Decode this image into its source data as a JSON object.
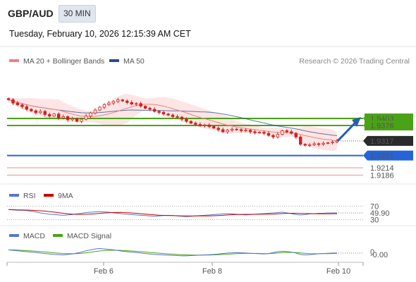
{
  "header": {
    "symbol": "GBP/AUD",
    "timeframe": "30 MIN",
    "datetime": "Tuesday, February 10, 2026 12:15:39 AM CET"
  },
  "source": "Research © 2026 Trading Central",
  "colors": {
    "candle": "#d02020",
    "ma20": "#f08080",
    "bands": "#fde0e0",
    "ma50": "#2a4d8f",
    "resistance": "#4aa316",
    "support": "#2464d8",
    "target": "#f07070",
    "rsi": "#5577cc",
    "ma9": "#cc0000",
    "macd": "#5577cc",
    "macd_signal": "#4aa316",
    "last_price": "#2a2a2a"
  },
  "chart_data": [
    {
      "type": "candlestick",
      "legend": [
        {
          "label": "MA 20 + Bollinger Bands",
          "color": "#f08080"
        },
        {
          "label": "MA 50",
          "color": "#2a4d8f"
        }
      ],
      "x_ticks": [
        "Feb 6",
        "Feb 8",
        "Feb 10"
      ],
      "ylim": [
        1.916,
        1.96
      ],
      "close": [
        1.9475,
        1.9462,
        1.9455,
        1.9448,
        1.9438,
        1.9432,
        1.9425,
        1.943,
        1.9418,
        1.9412,
        1.942,
        1.9405,
        1.941,
        1.9398,
        1.9402,
        1.9392,
        1.94,
        1.9412,
        1.9424,
        1.9435,
        1.9446,
        1.9456,
        1.9462,
        1.9468,
        1.9474,
        1.947,
        1.9464,
        1.9458,
        1.946,
        1.945,
        1.9442,
        1.9438,
        1.943,
        1.9426,
        1.942,
        1.9416,
        1.941,
        1.9408,
        1.94,
        1.9392,
        1.9385,
        1.938,
        1.9376,
        1.9378,
        1.9372,
        1.9366,
        1.936,
        1.9352,
        1.9358,
        1.9362,
        1.936,
        1.9356,
        1.9358,
        1.9352,
        1.9348,
        1.935,
        1.9346,
        1.9338,
        1.9332,
        1.9342,
        1.9356,
        1.9352,
        1.9346,
        1.9332,
        1.9304,
        1.93,
        1.9302,
        1.9306,
        1.9304,
        1.9308,
        1.931,
        1.9313,
        1.9317
      ],
      "price_labels": [
        {
          "value": 1.9403,
          "label": "1.9403",
          "kind": "resistance"
        },
        {
          "value": 1.9376,
          "label": "1.9376",
          "kind": "resistance"
        },
        {
          "value": 1.9317,
          "label": "1.9317",
          "kind": "last"
        },
        {
          "value": 1.9261,
          "label": "1.9261",
          "kind": "support"
        },
        {
          "value": 1.9214,
          "label": "1.9214",
          "kind": "target"
        },
        {
          "value": 1.9186,
          "label": "1.9186",
          "kind": "target"
        }
      ]
    },
    {
      "type": "line",
      "legend": [
        {
          "label": "RSI",
          "color": "#5577cc"
        },
        {
          "label": "9MA",
          "color": "#cc0000"
        }
      ],
      "ylim": [
        25,
        75
      ],
      "levels": [
        {
          "value": 70,
          "label": "70"
        },
        {
          "value": 30,
          "label": "30"
        }
      ],
      "last_label": "49.90",
      "rsi": [
        60,
        59,
        58,
        58,
        57,
        55,
        53,
        50,
        48,
        46,
        45,
        44,
        43,
        44,
        45,
        47,
        49,
        51,
        52,
        53,
        54,
        53,
        52,
        50,
        49,
        47,
        46,
        45,
        44,
        43,
        42,
        41,
        40,
        41,
        42,
        43,
        42,
        41,
        40,
        39,
        40,
        41,
        42,
        43,
        44,
        45,
        46,
        47,
        48,
        47,
        46,
        45,
        44,
        45,
        46,
        47,
        48,
        49,
        50,
        51,
        52,
        50,
        48,
        45,
        44,
        45,
        47,
        48,
        49,
        49,
        50,
        50,
        49.9
      ]
    },
    {
      "type": "line",
      "legend": [
        {
          "label": "MACD",
          "color": "#5577cc"
        },
        {
          "label": "MACD Signal",
          "color": "#4aa316"
        }
      ],
      "ylim": [
        -0.004,
        0.004
      ],
      "levels": [
        {
          "value": 0,
          "label": "0"
        }
      ],
      "last_label": "-0.00",
      "macd": [
        0.0008,
        0.0006,
        0.0004,
        0.0002,
        0.0,
        -0.0002,
        -0.0004,
        -0.0006,
        -0.0008,
        -0.001,
        -0.0012,
        -0.0013,
        -0.0014,
        -0.0012,
        -0.001,
        -0.0006,
        -0.0002,
        0.0004,
        0.0008,
        0.0012,
        0.0014,
        0.0012,
        0.001,
        0.0008,
        0.0005,
        0.0002,
        0.0,
        -0.0002,
        -0.0004,
        -0.0006,
        -0.0008,
        -0.001,
        -0.0012,
        -0.0013,
        -0.0014,
        -0.0015,
        -0.0016,
        -0.0017,
        -0.0018,
        -0.0018,
        -0.0017,
        -0.0016,
        -0.0015,
        -0.0014,
        -0.0013,
        -0.0012,
        -0.001,
        -0.0008,
        -0.0006,
        -0.0005,
        -0.0004,
        -0.0005,
        -0.0006,
        -0.0007,
        -0.0008,
        -0.0009,
        -0.001,
        -0.0008,
        -0.0004,
        0.0,
        0.0002,
        0.0001,
        -0.0002,
        -0.0006,
        -0.0012,
        -0.0014,
        -0.0013,
        -0.0011,
        -0.0009,
        -0.0008,
        -0.0007,
        -0.0006,
        -0.0006
      ]
    }
  ]
}
